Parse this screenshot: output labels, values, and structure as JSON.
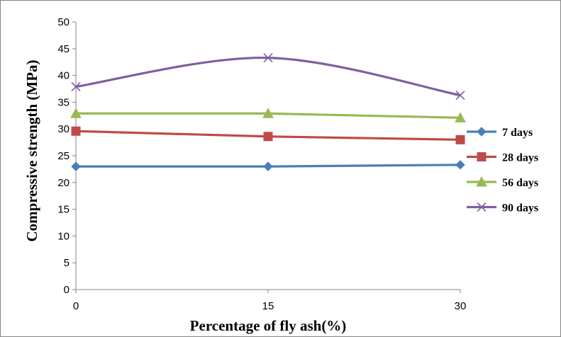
{
  "chart_data": {
    "type": "line",
    "categories": [
      "0",
      "15",
      "30"
    ],
    "x": [
      0,
      15,
      30
    ],
    "xlabel": "Percentage of fly ash(%)",
    "ylabel": "Compressive strength (MPa)",
    "ylim": [
      0,
      50
    ],
    "yticks": [
      0,
      5,
      10,
      15,
      20,
      25,
      30,
      35,
      40,
      45,
      50
    ],
    "grid": false,
    "legend_position": "right",
    "series": [
      {
        "name": "7 days",
        "values": [
          23.0,
          23.0,
          23.3
        ],
        "color": "#4A7EBB",
        "marker": "diamond",
        "smooth": false
      },
      {
        "name": "28 days",
        "values": [
          29.6,
          28.6,
          28.0
        ],
        "color": "#BE4B48",
        "marker": "square",
        "smooth": false
      },
      {
        "name": "56 days",
        "values": [
          32.9,
          32.9,
          32.1
        ],
        "color": "#98B954",
        "marker": "triangle",
        "smooth": false
      },
      {
        "name": "90 days",
        "values": [
          37.9,
          43.3,
          36.3
        ],
        "color": "#7D60A0",
        "marker": "x",
        "smooth": true
      }
    ]
  }
}
